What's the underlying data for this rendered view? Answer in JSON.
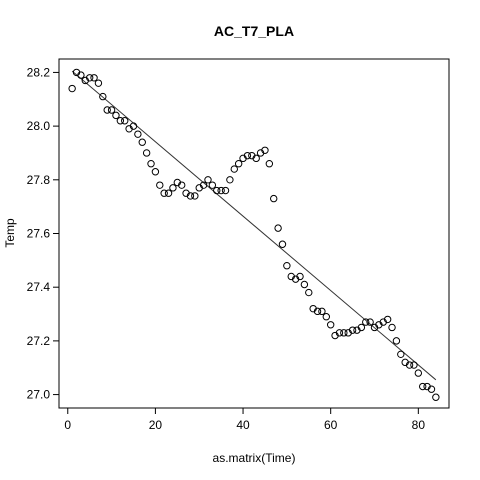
{
  "chart_data": {
    "type": "scatter",
    "title": "AC_T7_PLA",
    "xlabel": "as.matrix(Time)",
    "ylabel": "Temp",
    "xlim": [
      -2,
      87
    ],
    "ylim": [
      26.95,
      28.25
    ],
    "xticks": [
      0,
      20,
      40,
      60,
      80
    ],
    "yticks": [
      27.0,
      27.2,
      27.4,
      27.6,
      27.8,
      28.0,
      28.2
    ],
    "grid": false,
    "legend": "none",
    "marker": "open-circle",
    "colors": {
      "marker": "#000000",
      "fit_line": "#333333",
      "frame": "#000000"
    },
    "x": [
      1,
      2,
      3,
      4,
      5,
      6,
      7,
      8,
      9,
      10,
      11,
      12,
      13,
      14,
      15,
      16,
      17,
      18,
      19,
      20,
      21,
      22,
      23,
      24,
      25,
      26,
      27,
      28,
      29,
      30,
      31,
      32,
      33,
      34,
      35,
      36,
      37,
      38,
      39,
      40,
      41,
      42,
      43,
      44,
      45,
      46,
      47,
      48,
      49,
      50,
      51,
      52,
      53,
      54,
      55,
      56,
      57,
      58,
      59,
      60,
      61,
      62,
      63,
      64,
      65,
      66,
      67,
      68,
      69,
      70,
      71,
      72,
      73,
      74,
      75,
      76,
      77,
      78,
      79,
      80,
      81,
      82,
      83,
      84
    ],
    "y": [
      28.14,
      28.2,
      28.19,
      28.17,
      28.18,
      28.18,
      28.16,
      28.11,
      28.06,
      28.06,
      28.04,
      28.02,
      28.02,
      27.99,
      28.0,
      27.97,
      27.94,
      27.9,
      27.86,
      27.83,
      27.78,
      27.75,
      27.75,
      27.77,
      27.79,
      27.78,
      27.75,
      27.74,
      27.74,
      27.77,
      27.78,
      27.8,
      27.78,
      27.76,
      27.76,
      27.76,
      27.8,
      27.84,
      27.86,
      27.88,
      27.89,
      27.89,
      27.88,
      27.9,
      27.91,
      27.86,
      27.73,
      27.62,
      27.56,
      27.48,
      27.44,
      27.43,
      27.44,
      27.41,
      27.38,
      27.32,
      27.31,
      27.31,
      27.29,
      27.26,
      27.22,
      27.23,
      27.23,
      27.23,
      27.24,
      27.24,
      27.25,
      27.27,
      27.27,
      27.25,
      27.26,
      27.27,
      27.28,
      27.25,
      27.2,
      27.15,
      27.12,
      27.11,
      27.11,
      27.08,
      27.03,
      27.03,
      27.02,
      26.99
    ],
    "fit_line": {
      "x": [
        1,
        84
      ],
      "y": [
        28.205,
        27.055
      ]
    }
  }
}
